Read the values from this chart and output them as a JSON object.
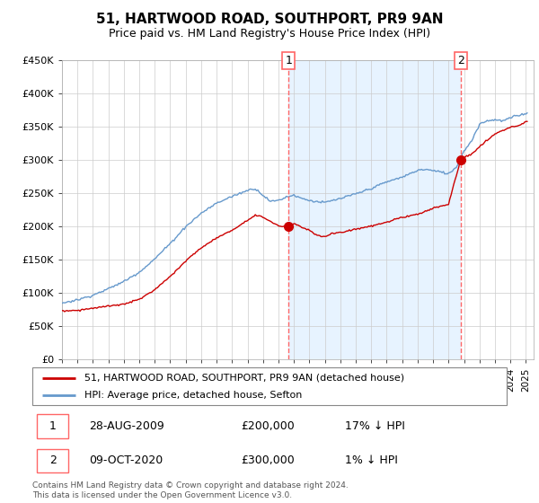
{
  "title": "51, HARTWOOD ROAD, SOUTHPORT, PR9 9AN",
  "subtitle": "Price paid vs. HM Land Registry's House Price Index (HPI)",
  "legend_line1": "51, HARTWOOD ROAD, SOUTHPORT, PR9 9AN (detached house)",
  "legend_line2": "HPI: Average price, detached house, Sefton",
  "transaction1_date": "28-AUG-2009",
  "transaction1_price": "£200,000",
  "transaction1_hpi": "17% ↓ HPI",
  "transaction2_date": "09-OCT-2020",
  "transaction2_price": "£300,000",
  "transaction2_hpi": "1% ↓ HPI",
  "footer": "Contains HM Land Registry data © Crown copyright and database right 2024.\nThis data is licensed under the Open Government Licence v3.0.",
  "ylim": [
    0,
    450000
  ],
  "yticks": [
    0,
    50000,
    100000,
    150000,
    200000,
    250000,
    300000,
    350000,
    400000,
    450000
  ],
  "ytick_labels": [
    "£0",
    "£50K",
    "£100K",
    "£150K",
    "£200K",
    "£250K",
    "£300K",
    "£350K",
    "£400K",
    "£450K"
  ],
  "xlim_start": 1995.0,
  "xlim_end": 2025.5,
  "transaction1_x": 2009.65,
  "transaction2_x": 2020.77,
  "transaction1_y": 200000,
  "transaction2_y": 300000,
  "property_color": "#cc0000",
  "hpi_color": "#6699cc",
  "vline_color": "#ff6666",
  "shade_color": "#ddeeff",
  "background_color": "#ffffff",
  "grid_color": "#cccccc",
  "hpi_keypoints_x": [
    1995,
    1996,
    1997,
    1998,
    1999,
    2000,
    2001,
    2002,
    2003,
    2004,
    2005,
    2006,
    2007,
    2007.5,
    2008,
    2008.5,
    2009,
    2009.5,
    2010,
    2010.5,
    2011,
    2011.5,
    2012,
    2012.5,
    2013,
    2014,
    2015,
    2016,
    2017,
    2017.5,
    2018,
    2018.5,
    2019,
    2019.5,
    2020,
    2020.5,
    2021,
    2021.5,
    2022,
    2022.5,
    2023,
    2023.5,
    2024,
    2024.5,
    2025
  ],
  "hpi_keypoints_y": [
    85000,
    90000,
    97000,
    107000,
    118000,
    132000,
    152000,
    175000,
    200000,
    220000,
    235000,
    245000,
    255000,
    258000,
    248000,
    238000,
    240000,
    245000,
    248000,
    243000,
    240000,
    238000,
    237000,
    240000,
    243000,
    250000,
    258000,
    268000,
    275000,
    280000,
    285000,
    287000,
    285000,
    283000,
    280000,
    290000,
    315000,
    330000,
    355000,
    360000,
    362000,
    360000,
    365000,
    368000,
    372000
  ],
  "prop_keypoints_x": [
    1995,
    1996,
    1997,
    1998,
    1999,
    2000,
    2001,
    2002,
    2003,
    2004,
    2005,
    2006,
    2007,
    2007.5,
    2008,
    2008.5,
    2009,
    2009.65,
    2010,
    2010.5,
    2011,
    2011.5,
    2012,
    2012.5,
    2013,
    2014,
    2015,
    2016,
    2017,
    2018,
    2019,
    2020,
    2020.77,
    2021,
    2021.5,
    2022,
    2022.5,
    2023,
    2023.5,
    2024,
    2024.5,
    2025
  ],
  "prop_keypoints_y": [
    73000,
    74000,
    77000,
    80000,
    83000,
    90000,
    105000,
    125000,
    148000,
    168000,
    183000,
    195000,
    210000,
    218000,
    215000,
    208000,
    202000,
    200000,
    205000,
    200000,
    195000,
    188000,
    185000,
    190000,
    192000,
    197000,
    202000,
    208000,
    215000,
    220000,
    228000,
    235000,
    300000,
    305000,
    310000,
    320000,
    330000,
    340000,
    345000,
    350000,
    352000,
    358000
  ]
}
